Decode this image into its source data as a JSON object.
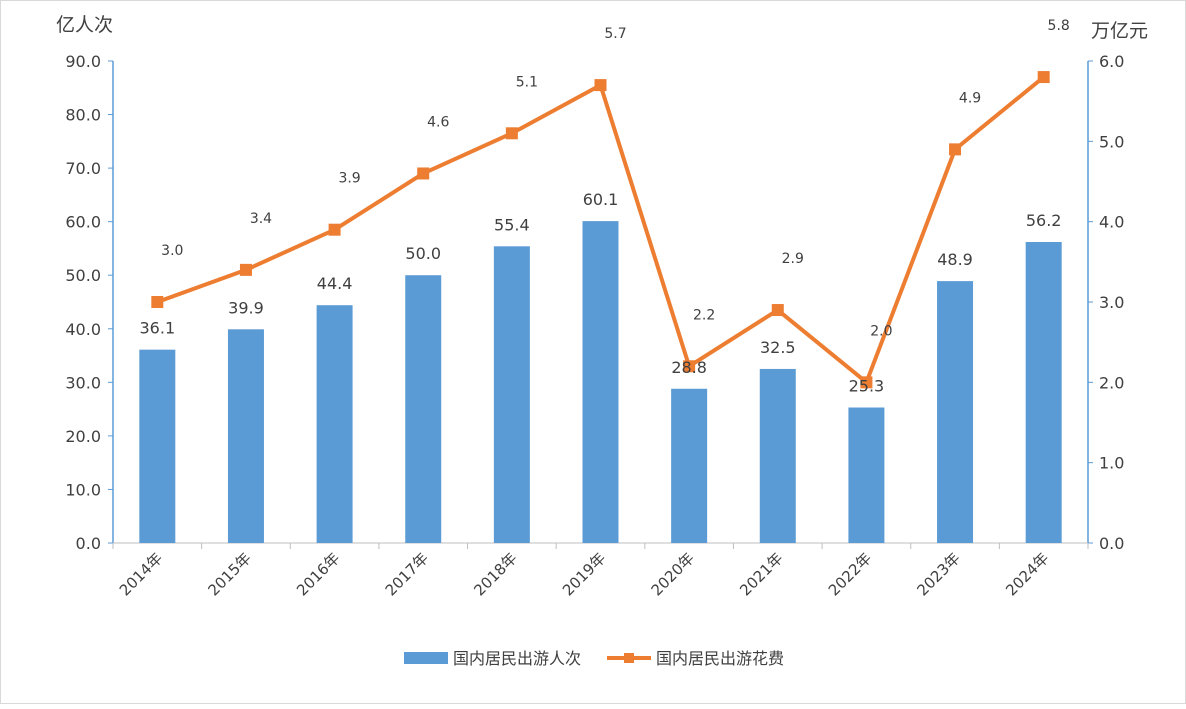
{
  "chart_data": {
    "type": "bar+line",
    "categories": [
      "2014年",
      "2015年",
      "2016年",
      "2017年",
      "2018年",
      "2019年",
      "2020年",
      "2021年",
      "2022年",
      "2023年",
      "2024年"
    ],
    "series": [
      {
        "name": "国内居民出游人次",
        "type": "bar",
        "axis": "left",
        "color": "#5b9bd5",
        "values": [
          36.1,
          39.9,
          44.4,
          50.0,
          55.4,
          60.1,
          28.8,
          32.5,
          25.3,
          48.9,
          56.2
        ]
      },
      {
        "name": "国内居民出游花费",
        "type": "line",
        "axis": "right",
        "color": "#ed7d31",
        "values": [
          3.0,
          3.4,
          3.9,
          4.6,
          5.1,
          5.7,
          2.2,
          2.9,
          2.0,
          4.9,
          5.8
        ]
      }
    ],
    "y_left": {
      "unit": "亿人次",
      "range": [
        0,
        90
      ],
      "ticks": [
        "0.0",
        "10.0",
        "20.0",
        "30.0",
        "40.0",
        "50.0",
        "60.0",
        "70.0",
        "80.0",
        "90.0"
      ]
    },
    "y_right": {
      "unit": "万亿元",
      "range": [
        0,
        6
      ],
      "ticks": [
        "0.0",
        "1.0",
        "2.0",
        "3.0",
        "4.0",
        "5.0",
        "6.0"
      ]
    },
    "grid": false,
    "legend": "bottom"
  }
}
